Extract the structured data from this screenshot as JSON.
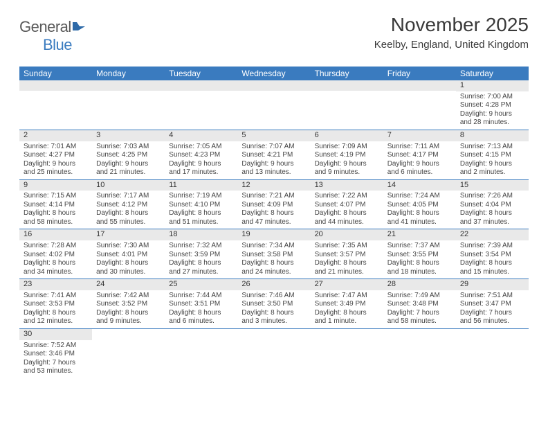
{
  "logo": {
    "general": "General",
    "blue": "Blue"
  },
  "title": "November 2025",
  "location": "Keelby, England, United Kingdom",
  "header_bg": "#3a7bbf",
  "weekdays": [
    "Sunday",
    "Monday",
    "Tuesday",
    "Wednesday",
    "Thursday",
    "Friday",
    "Saturday"
  ],
  "weeks": [
    [
      null,
      null,
      null,
      null,
      null,
      null,
      {
        "n": "1",
        "sr": "Sunrise: 7:00 AM",
        "ss": "Sunset: 4:28 PM",
        "d1": "Daylight: 9 hours",
        "d2": "and 28 minutes."
      }
    ],
    [
      {
        "n": "2",
        "sr": "Sunrise: 7:01 AM",
        "ss": "Sunset: 4:27 PM",
        "d1": "Daylight: 9 hours",
        "d2": "and 25 minutes."
      },
      {
        "n": "3",
        "sr": "Sunrise: 7:03 AM",
        "ss": "Sunset: 4:25 PM",
        "d1": "Daylight: 9 hours",
        "d2": "and 21 minutes."
      },
      {
        "n": "4",
        "sr": "Sunrise: 7:05 AM",
        "ss": "Sunset: 4:23 PM",
        "d1": "Daylight: 9 hours",
        "d2": "and 17 minutes."
      },
      {
        "n": "5",
        "sr": "Sunrise: 7:07 AM",
        "ss": "Sunset: 4:21 PM",
        "d1": "Daylight: 9 hours",
        "d2": "and 13 minutes."
      },
      {
        "n": "6",
        "sr": "Sunrise: 7:09 AM",
        "ss": "Sunset: 4:19 PM",
        "d1": "Daylight: 9 hours",
        "d2": "and 9 minutes."
      },
      {
        "n": "7",
        "sr": "Sunrise: 7:11 AM",
        "ss": "Sunset: 4:17 PM",
        "d1": "Daylight: 9 hours",
        "d2": "and 6 minutes."
      },
      {
        "n": "8",
        "sr": "Sunrise: 7:13 AM",
        "ss": "Sunset: 4:15 PM",
        "d1": "Daylight: 9 hours",
        "d2": "and 2 minutes."
      }
    ],
    [
      {
        "n": "9",
        "sr": "Sunrise: 7:15 AM",
        "ss": "Sunset: 4:14 PM",
        "d1": "Daylight: 8 hours",
        "d2": "and 58 minutes."
      },
      {
        "n": "10",
        "sr": "Sunrise: 7:17 AM",
        "ss": "Sunset: 4:12 PM",
        "d1": "Daylight: 8 hours",
        "d2": "and 55 minutes."
      },
      {
        "n": "11",
        "sr": "Sunrise: 7:19 AM",
        "ss": "Sunset: 4:10 PM",
        "d1": "Daylight: 8 hours",
        "d2": "and 51 minutes."
      },
      {
        "n": "12",
        "sr": "Sunrise: 7:21 AM",
        "ss": "Sunset: 4:09 PM",
        "d1": "Daylight: 8 hours",
        "d2": "and 47 minutes."
      },
      {
        "n": "13",
        "sr": "Sunrise: 7:22 AM",
        "ss": "Sunset: 4:07 PM",
        "d1": "Daylight: 8 hours",
        "d2": "and 44 minutes."
      },
      {
        "n": "14",
        "sr": "Sunrise: 7:24 AM",
        "ss": "Sunset: 4:05 PM",
        "d1": "Daylight: 8 hours",
        "d2": "and 41 minutes."
      },
      {
        "n": "15",
        "sr": "Sunrise: 7:26 AM",
        "ss": "Sunset: 4:04 PM",
        "d1": "Daylight: 8 hours",
        "d2": "and 37 minutes."
      }
    ],
    [
      {
        "n": "16",
        "sr": "Sunrise: 7:28 AM",
        "ss": "Sunset: 4:02 PM",
        "d1": "Daylight: 8 hours",
        "d2": "and 34 minutes."
      },
      {
        "n": "17",
        "sr": "Sunrise: 7:30 AM",
        "ss": "Sunset: 4:01 PM",
        "d1": "Daylight: 8 hours",
        "d2": "and 30 minutes."
      },
      {
        "n": "18",
        "sr": "Sunrise: 7:32 AM",
        "ss": "Sunset: 3:59 PM",
        "d1": "Daylight: 8 hours",
        "d2": "and 27 minutes."
      },
      {
        "n": "19",
        "sr": "Sunrise: 7:34 AM",
        "ss": "Sunset: 3:58 PM",
        "d1": "Daylight: 8 hours",
        "d2": "and 24 minutes."
      },
      {
        "n": "20",
        "sr": "Sunrise: 7:35 AM",
        "ss": "Sunset: 3:57 PM",
        "d1": "Daylight: 8 hours",
        "d2": "and 21 minutes."
      },
      {
        "n": "21",
        "sr": "Sunrise: 7:37 AM",
        "ss": "Sunset: 3:55 PM",
        "d1": "Daylight: 8 hours",
        "d2": "and 18 minutes."
      },
      {
        "n": "22",
        "sr": "Sunrise: 7:39 AM",
        "ss": "Sunset: 3:54 PM",
        "d1": "Daylight: 8 hours",
        "d2": "and 15 minutes."
      }
    ],
    [
      {
        "n": "23",
        "sr": "Sunrise: 7:41 AM",
        "ss": "Sunset: 3:53 PM",
        "d1": "Daylight: 8 hours",
        "d2": "and 12 minutes."
      },
      {
        "n": "24",
        "sr": "Sunrise: 7:42 AM",
        "ss": "Sunset: 3:52 PM",
        "d1": "Daylight: 8 hours",
        "d2": "and 9 minutes."
      },
      {
        "n": "25",
        "sr": "Sunrise: 7:44 AM",
        "ss": "Sunset: 3:51 PM",
        "d1": "Daylight: 8 hours",
        "d2": "and 6 minutes."
      },
      {
        "n": "26",
        "sr": "Sunrise: 7:46 AM",
        "ss": "Sunset: 3:50 PM",
        "d1": "Daylight: 8 hours",
        "d2": "and 3 minutes."
      },
      {
        "n": "27",
        "sr": "Sunrise: 7:47 AM",
        "ss": "Sunset: 3:49 PM",
        "d1": "Daylight: 8 hours",
        "d2": "and 1 minute."
      },
      {
        "n": "28",
        "sr": "Sunrise: 7:49 AM",
        "ss": "Sunset: 3:48 PM",
        "d1": "Daylight: 7 hours",
        "d2": "and 58 minutes."
      },
      {
        "n": "29",
        "sr": "Sunrise: 7:51 AM",
        "ss": "Sunset: 3:47 PM",
        "d1": "Daylight: 7 hours",
        "d2": "and 56 minutes."
      }
    ],
    [
      {
        "n": "30",
        "sr": "Sunrise: 7:52 AM",
        "ss": "Sunset: 3:46 PM",
        "d1": "Daylight: 7 hours",
        "d2": "and 53 minutes."
      },
      null,
      null,
      null,
      null,
      null,
      null
    ]
  ]
}
